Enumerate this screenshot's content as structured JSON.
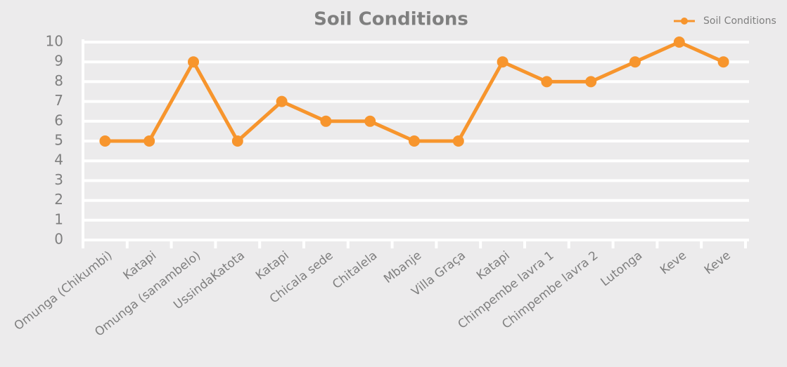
{
  "chart_data": {
    "type": "line",
    "title": "Soil Conditions",
    "categories": [
      "Omunga (Chikumbi)",
      "Katapi",
      "Omunga (sanambelo)",
      "UssindaKatota",
      "Katapi",
      "Chicala sede",
      "Chitalela",
      "Mbanje",
      "Villa Graça",
      "Katapi",
      "Chimpembe lavra 1",
      "Chimpembe lavra 2",
      "Lutonga",
      "Keve",
      "Keve"
    ],
    "series": [
      {
        "name": "Soil Conditions",
        "color": "#f7952d",
        "values": [
          5,
          5,
          9,
          5,
          7,
          6,
          6,
          5,
          5,
          9,
          8,
          8,
          9,
          10,
          9
        ]
      }
    ],
    "ylim": [
      0,
      10
    ],
    "yticks": [
      0,
      1,
      2,
      3,
      4,
      5,
      6,
      7,
      8,
      9,
      10
    ],
    "grid": true,
    "legend": "top-right"
  }
}
